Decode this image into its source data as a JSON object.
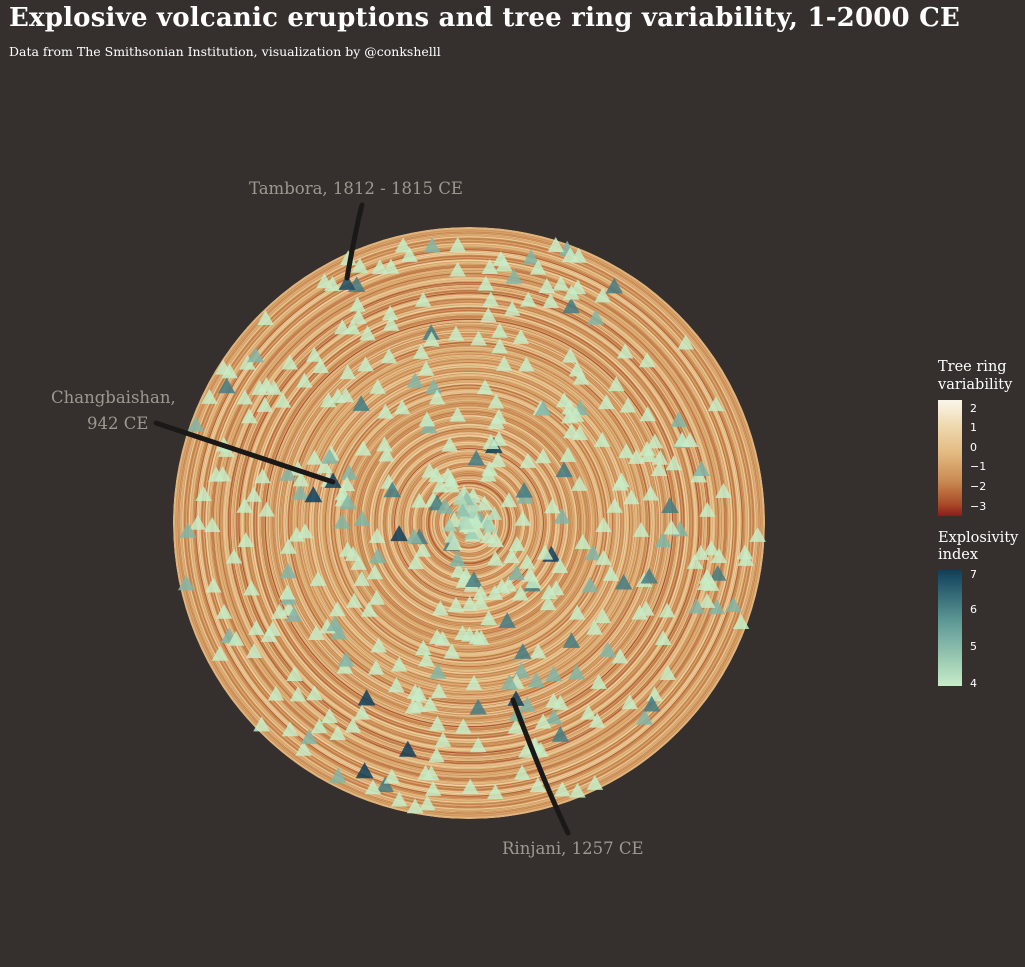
{
  "title": "Explosive volcanic eruptions and tree ring variability, 1-2000 CE",
  "subtitle": "Data from The Smithsonian Institution, visualization by @conkshelll",
  "chart_data": {
    "type": "scatter",
    "projection": "polar (year mapped to radius 1-2000 CE from center outward, 50 years per ring)",
    "background_rings": "tree ring variability, continuous per-year values from about -3 to 2",
    "points": "about 400 eruptions drawn as triangles; explosivity index 4-7",
    "annotations": [
      {
        "label": "Tambora, 1812 - 1815 CE",
        "year": 1813
      },
      {
        "label_line1": "Changbaishan,",
        "label_line2": "942 CE",
        "year": 942
      },
      {
        "label": "Rinjani, 1257 CE",
        "year": 1257
      }
    ],
    "legend_tree": {
      "title_line1": "Tree ring",
      "title_line2": "variability",
      "ticks": [
        "2",
        "1",
        "0",
        "−1",
        "−2",
        "−3"
      ],
      "tick_values": [
        2,
        1,
        0,
        -1,
        -2,
        -3
      ],
      "range": [
        -3.3,
        2.8
      ],
      "colors": [
        "#8a1c1c",
        "#a84a28",
        "#c98a52",
        "#e3bb82",
        "#f0dcb4",
        "#fbf6ea"
      ]
    },
    "legend_vei": {
      "title_line1": "Explosivity",
      "title_line2": "index",
      "ticks": [
        "7",
        "6",
        "5",
        "4"
      ],
      "tick_values": [
        7,
        6,
        5,
        4
      ],
      "range": [
        4,
        7
      ],
      "colors": [
        "#c7ecc7",
        "#5f9a96",
        "#0f3f5c"
      ]
    }
  }
}
